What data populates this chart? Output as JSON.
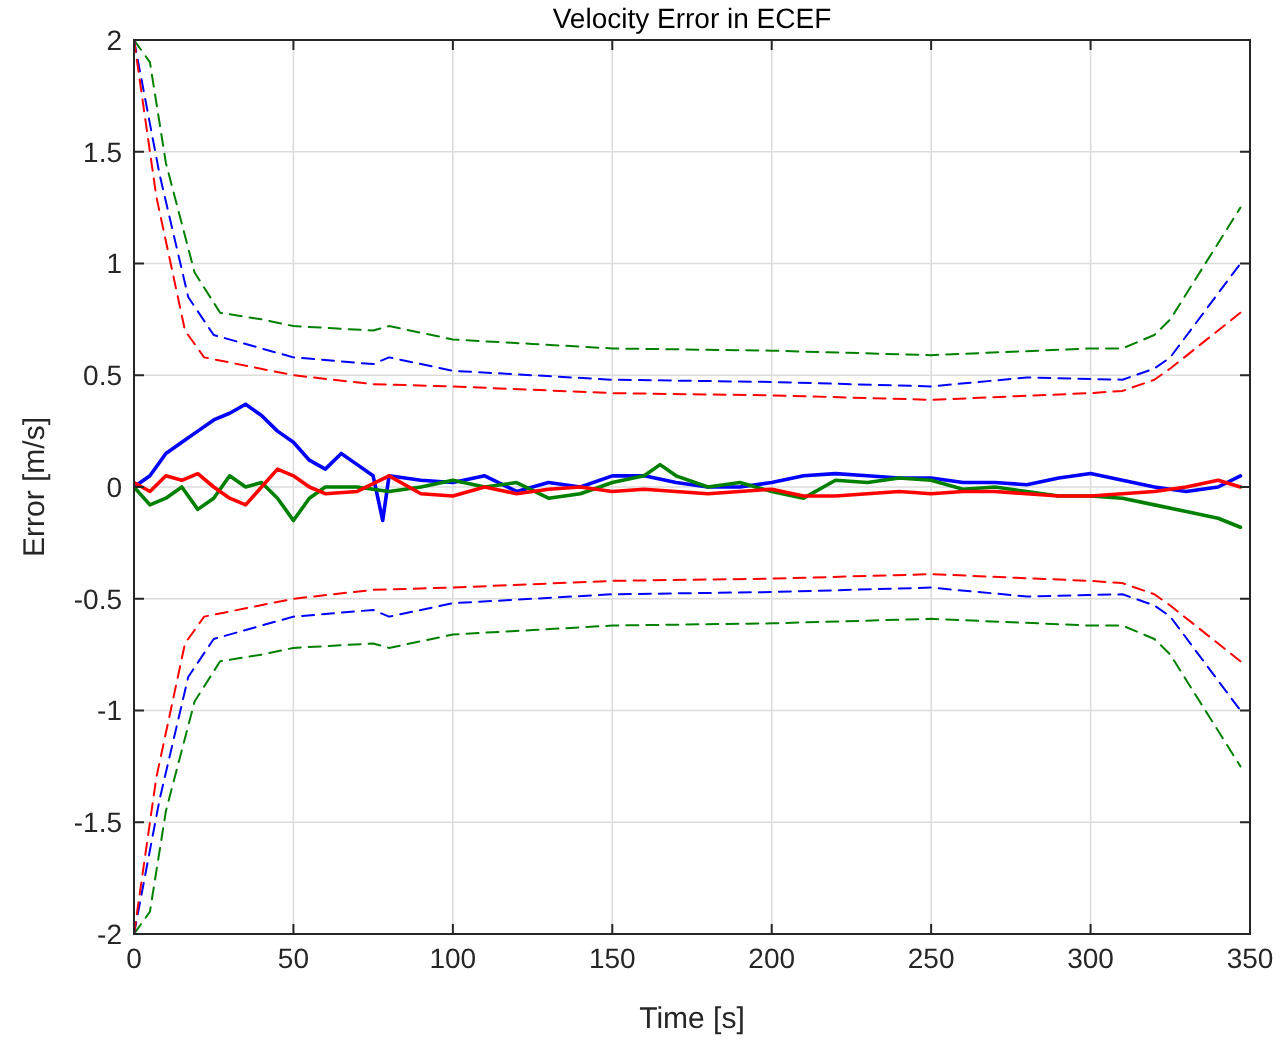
{
  "chart_data": {
    "type": "line",
    "title": "Velocity Error in ECEF",
    "xlabel": "Time [s]",
    "ylabel": "Error [m/s]",
    "xlim": [
      0,
      350
    ],
    "ylim": [
      -2,
      2
    ],
    "xticks": [
      0,
      50,
      100,
      150,
      200,
      250,
      300,
      350
    ],
    "yticks": [
      -2,
      -1.5,
      -1,
      -0.5,
      0,
      0.5,
      1,
      1.5,
      2
    ],
    "grid": true,
    "series": [
      {
        "color": "#0000ff",
        "line_style": "solid",
        "x": [
          0,
          5,
          10,
          15,
          20,
          25,
          30,
          35,
          40,
          45,
          50,
          55,
          60,
          65,
          70,
          75,
          78,
          80,
          90,
          100,
          110,
          120,
          130,
          140,
          150,
          160,
          170,
          180,
          190,
          200,
          210,
          220,
          230,
          240,
          250,
          260,
          270,
          280,
          290,
          300,
          310,
          320,
          330,
          340,
          347
        ],
        "values": [
          0,
          0.05,
          0.15,
          0.2,
          0.25,
          0.3,
          0.33,
          0.37,
          0.32,
          0.25,
          0.2,
          0.12,
          0.08,
          0.15,
          0.1,
          0.05,
          -0.15,
          0.05,
          0.03,
          0.02,
          0.05,
          -0.02,
          0.02,
          0,
          0.05,
          0.05,
          0.02,
          0,
          0,
          0.02,
          0.05,
          0.06,
          0.05,
          0.04,
          0.04,
          0.02,
          0.02,
          0.01,
          0.04,
          0.06,
          0.03,
          0,
          -0.02,
          0,
          0.05
        ]
      },
      {
        "color": "#008000",
        "line_style": "solid",
        "x": [
          0,
          5,
          10,
          15,
          20,
          25,
          30,
          35,
          40,
          45,
          50,
          55,
          60,
          70,
          80,
          90,
          100,
          110,
          120,
          130,
          140,
          150,
          160,
          165,
          170,
          180,
          190,
          200,
          210,
          220,
          230,
          240,
          250,
          260,
          270,
          280,
          290,
          300,
          310,
          320,
          330,
          340,
          347
        ],
        "values": [
          0,
          -0.08,
          -0.05,
          0,
          -0.1,
          -0.05,
          0.05,
          0,
          0.02,
          -0.05,
          -0.15,
          -0.05,
          0,
          0,
          -0.02,
          0,
          0.03,
          0,
          0.02,
          -0.05,
          -0.03,
          0.02,
          0.05,
          0.1,
          0.05,
          0,
          0.02,
          -0.02,
          -0.05,
          0.03,
          0.02,
          0.04,
          0.03,
          -0.01,
          0,
          -0.02,
          -0.04,
          -0.04,
          -0.05,
          -0.08,
          -0.11,
          -0.14,
          -0.18
        ]
      },
      {
        "color": "#ff0000",
        "line_style": "solid",
        "x": [
          0,
          5,
          10,
          15,
          20,
          25,
          30,
          35,
          40,
          45,
          50,
          55,
          60,
          70,
          80,
          90,
          100,
          110,
          120,
          130,
          140,
          150,
          160,
          170,
          180,
          190,
          200,
          210,
          220,
          230,
          240,
          250,
          260,
          270,
          280,
          290,
          300,
          310,
          320,
          330,
          340,
          347
        ],
        "values": [
          0.02,
          -0.02,
          0.05,
          0.03,
          0.06,
          0,
          -0.05,
          -0.08,
          0,
          0.08,
          0.05,
          0,
          -0.03,
          -0.02,
          0.05,
          -0.03,
          -0.04,
          0,
          -0.03,
          -0.01,
          0,
          -0.02,
          -0.01,
          -0.02,
          -0.03,
          -0.02,
          -0.01,
          -0.04,
          -0.04,
          -0.03,
          -0.02,
          -0.03,
          -0.02,
          -0.02,
          -0.03,
          -0.04,
          -0.04,
          -0.03,
          -0.02,
          0,
          0.03,
          0
        ]
      },
      {
        "color": "#008000",
        "line_style": "dashed",
        "x": [
          0,
          5,
          10,
          19,
          27,
          40,
          50,
          75,
          80,
          100,
          125,
          150,
          200,
          250,
          300,
          310,
          320,
          325,
          347
        ],
        "values": [
          2,
          1.9,
          1.45,
          0.96,
          0.78,
          0.75,
          0.72,
          0.7,
          0.72,
          0.66,
          0.64,
          0.62,
          0.61,
          0.59,
          0.62,
          0.62,
          0.68,
          0.75,
          1.25
        ]
      },
      {
        "color": "#0000ff",
        "line_style": "dashed",
        "x": [
          0,
          8,
          17,
          25,
          40,
          50,
          75,
          80,
          100,
          150,
          200,
          250,
          280,
          310,
          320,
          325,
          347
        ],
        "values": [
          2,
          1.4,
          0.85,
          0.68,
          0.62,
          0.58,
          0.55,
          0.58,
          0.52,
          0.48,
          0.47,
          0.45,
          0.49,
          0.48,
          0.53,
          0.58,
          1
        ]
      },
      {
        "color": "#ff0000",
        "line_style": "dashed",
        "x": [
          0,
          7,
          16,
          22,
          50,
          75,
          100,
          150,
          200,
          250,
          300,
          310,
          320,
          325,
          347
        ],
        "values": [
          2,
          1.3,
          0.7,
          0.58,
          0.5,
          0.46,
          0.45,
          0.42,
          0.41,
          0.39,
          0.42,
          0.43,
          0.48,
          0.53,
          0.78
        ]
      },
      {
        "color": "#008000",
        "line_style": "dashed",
        "x": [
          0,
          5,
          10,
          19,
          27,
          40,
          50,
          75,
          80,
          100,
          125,
          150,
          200,
          250,
          300,
          310,
          320,
          325,
          347
        ],
        "values": [
          -2,
          -1.9,
          -1.45,
          -0.96,
          -0.78,
          -0.75,
          -0.72,
          -0.7,
          -0.72,
          -0.66,
          -0.64,
          -0.62,
          -0.61,
          -0.59,
          -0.62,
          -0.62,
          -0.68,
          -0.75,
          -1.25
        ]
      },
      {
        "color": "#0000ff",
        "line_style": "dashed",
        "x": [
          0,
          8,
          17,
          25,
          40,
          50,
          75,
          80,
          100,
          150,
          200,
          250,
          280,
          310,
          320,
          325,
          347
        ],
        "values": [
          -2,
          -1.4,
          -0.85,
          -0.68,
          -0.62,
          -0.58,
          -0.55,
          -0.58,
          -0.52,
          -0.48,
          -0.47,
          -0.45,
          -0.49,
          -0.48,
          -0.53,
          -0.58,
          -1
        ]
      },
      {
        "color": "#ff0000",
        "line_style": "dashed",
        "x": [
          0,
          7,
          16,
          22,
          50,
          75,
          100,
          150,
          200,
          250,
          300,
          310,
          320,
          325,
          347
        ],
        "values": [
          -2,
          -1.3,
          -0.7,
          -0.58,
          -0.5,
          -0.46,
          -0.45,
          -0.42,
          -0.41,
          -0.39,
          -0.42,
          -0.43,
          -0.48,
          -0.53,
          -0.78
        ]
      }
    ]
  }
}
